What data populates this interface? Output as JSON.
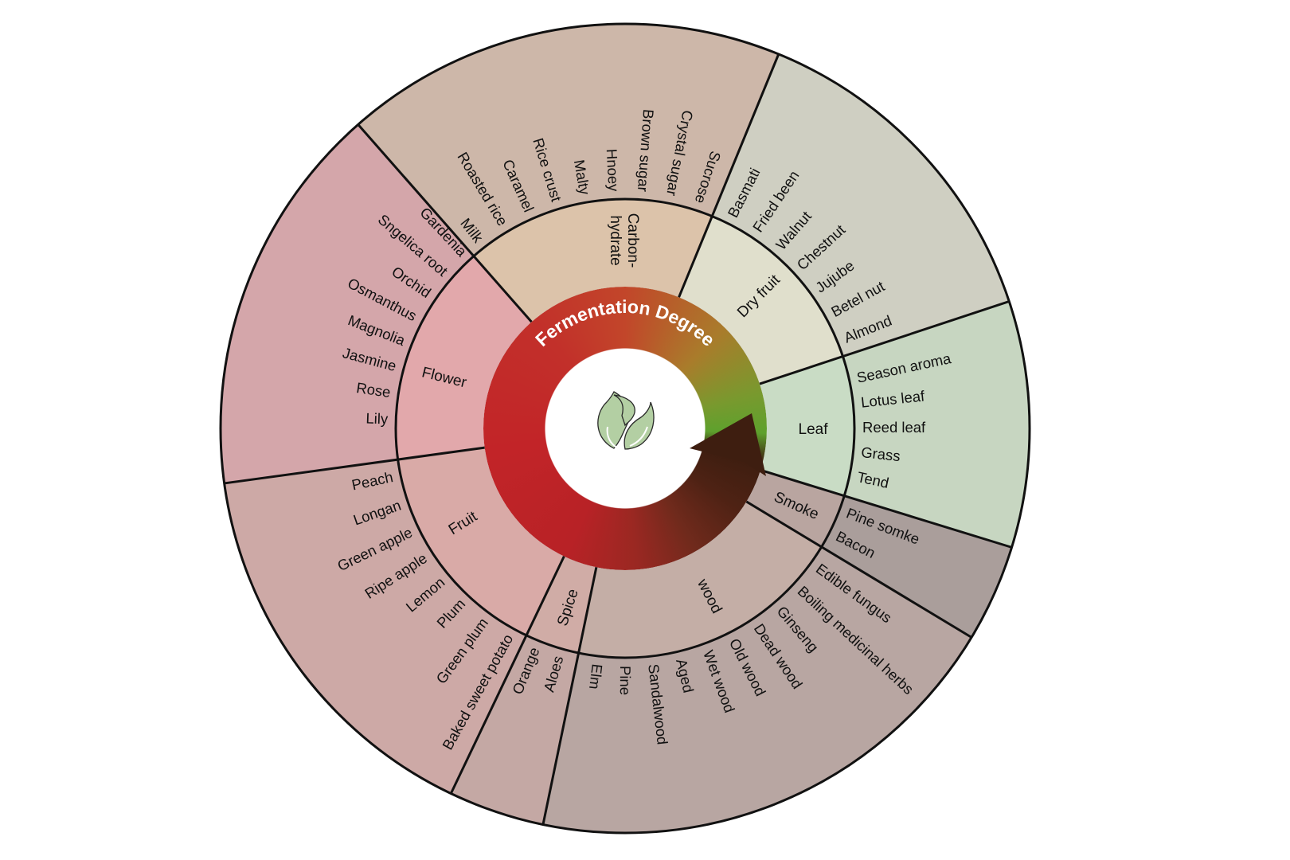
{
  "center_title": "Fermentation Degree",
  "center_icon": "tea-leaf-icon",
  "categories": [
    {
      "name": "Leaf",
      "color_inner": "#c9dcc5",
      "color_outer": "#c7d6c1",
      "labels": [
        "Season aroma",
        "Lotus leaf",
        "Reed leaf",
        "Grass",
        "Tend"
      ]
    },
    {
      "name": "Smoke",
      "color_inner": "#b9a5a0",
      "color_outer": "#aa9e9b",
      "labels": [
        "Pine somke",
        "Bacon"
      ]
    },
    {
      "name": "wood",
      "color_inner": "#c4aea6",
      "color_outer": "#b8a6a2",
      "labels": [
        "Edible fungus",
        "Boiling medicinal herbs",
        "Ginseng",
        "Dead wood",
        "Old wood",
        "Wet wood",
        "Aged",
        "Sandalwood",
        "Pine",
        "Elm"
      ]
    },
    {
      "name": "Spice",
      "color_inner": "#d0aca6",
      "color_outer": "#c4a8a4",
      "labels": [
        "Aloes",
        "Orange"
      ]
    },
    {
      "name": "Fruit",
      "color_inner": "#d9aaa7",
      "color_outer": "#cda9a6",
      "labels": [
        "Baked sweet potato",
        "Green plum",
        "Plum",
        "Lemon",
        "Ripe apple",
        "Green apple",
        "Longan",
        "Peach"
      ]
    },
    {
      "name": "Flower",
      "color_inner": "#e2a8ab",
      "color_outer": "#d4a6aa",
      "labels": [
        "Lily",
        "Rose",
        "Jasmine",
        "Magnolia",
        "Osmanthus",
        "Orchid",
        "Sngelica root",
        "Gardenia"
      ]
    },
    {
      "name": "Carbon-\nhydrate",
      "color_inner": "#dcc3aa",
      "color_outer": "#cdb7a9",
      "labels": [
        "Milk",
        "Roasted rice",
        "Caramel",
        "Rice crust",
        "Malty",
        "Hnoey",
        "Brown sugar",
        "Crystal sugar",
        "Sucrose"
      ]
    },
    {
      "name": "Dry fruit",
      "color_inner": "#e0dfcc",
      "color_outer": "#cfcfc2",
      "labels": [
        "Basmati",
        "Fried been",
        "Walnut",
        "Chestnut",
        "Jujube",
        "Betel nut",
        "Almond"
      ]
    }
  ],
  "ring_colors": {
    "early": "#5ea12d",
    "late": "#c22428",
    "arrow": "#3e1e10"
  }
}
